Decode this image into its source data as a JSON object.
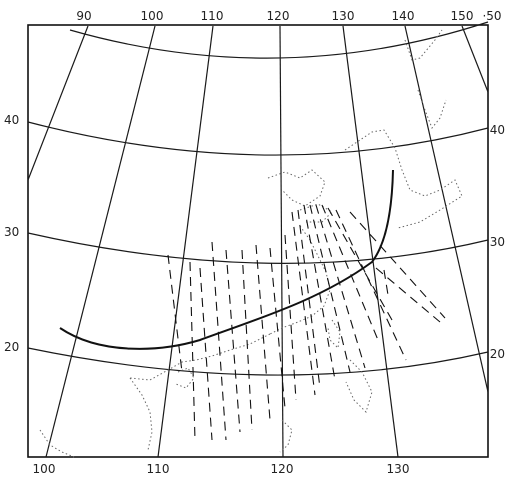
{
  "map": {
    "top_lon_labels": [
      "90",
      "100",
      "110",
      "120",
      "130",
      "140",
      "150"
    ],
    "top_right_label": "·50",
    "bottom_lon_labels": [
      "100",
      "110",
      "120",
      "130"
    ],
    "left_lat_labels": [
      "40",
      "30",
      "20"
    ],
    "right_lat_labels": [
      "40",
      "30",
      "20"
    ],
    "features": {
      "graticule": "longitude and latitude grid lines",
      "coastline": "dotted coastlines",
      "track": "solid curved path",
      "transects": "dashed line segments"
    }
  }
}
